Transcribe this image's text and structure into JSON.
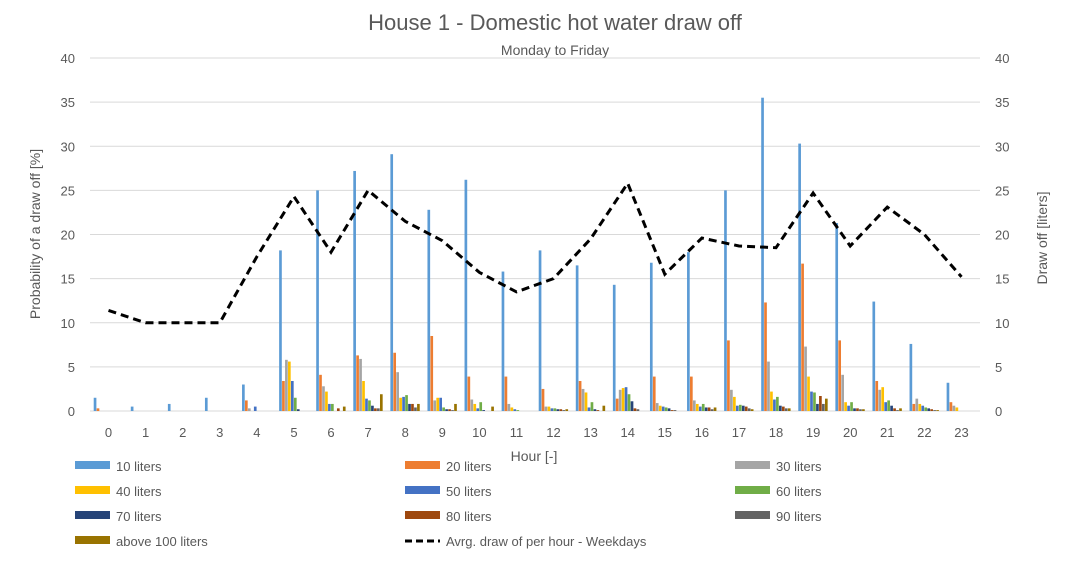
{
  "chart_data": {
    "type": "bar",
    "title": "House 1 - Domestic hot water draw off",
    "subtitle": "Monday to Friday",
    "xlabel": "Hour [-]",
    "ylabel": "Probability of a draw off [%]",
    "y2label": "Draw off [liters]",
    "categories": [
      "0",
      "1",
      "2",
      "3",
      "4",
      "5",
      "6",
      "7",
      "8",
      "9",
      "10",
      "11",
      "12",
      "13",
      "14",
      "15",
      "16",
      "17",
      "18",
      "19",
      "20",
      "21",
      "22",
      "23"
    ],
    "ylim": [
      0,
      40
    ],
    "y2lim": [
      0,
      40
    ],
    "yticks": [
      "0",
      "5",
      "10",
      "15",
      "20",
      "25",
      "30",
      "35",
      "40"
    ],
    "grid": true,
    "legend_position": "bottom",
    "series": [
      {
        "name": "10 liters",
        "color": "#5b9bd5",
        "values": [
          1.5,
          0.5,
          0.8,
          1.5,
          3,
          18.2,
          25,
          27.2,
          29.1,
          22.8,
          26.2,
          15.8,
          18.2,
          16.5,
          14.3,
          16.8,
          18,
          25,
          35.5,
          30.3,
          21.3,
          12.4,
          7.6,
          3.2
        ]
      },
      {
        "name": "20 liters",
        "color": "#ed7d31",
        "values": [
          0.3,
          0,
          0,
          0,
          1.2,
          3.4,
          4.1,
          6.3,
          6.6,
          8.5,
          3.9,
          3.9,
          2.5,
          3.4,
          1.4,
          3.9,
          3.9,
          8,
          12.3,
          16.7,
          8,
          3.4,
          0.8,
          1
        ]
      },
      {
        "name": "30 liters",
        "color": "#a5a5a5",
        "values": [
          0,
          0,
          0,
          0,
          0.3,
          5.8,
          2.8,
          5.9,
          4.4,
          1.2,
          1.3,
          0.8,
          0.5,
          2.5,
          2.4,
          0.9,
          1.2,
          2.4,
          5.6,
          7.3,
          4.1,
          2.4,
          1.4,
          0.6
        ]
      },
      {
        "name": "40 liters",
        "color": "#ffc000",
        "values": [
          0,
          0,
          0,
          0,
          0,
          5.6,
          2.2,
          3.4,
          1.5,
          1.5,
          0.8,
          0.4,
          0.5,
          2.1,
          2.6,
          0.6,
          0.8,
          1.6,
          2.2,
          3.9,
          1,
          2.7,
          0.8,
          0.4
        ]
      },
      {
        "name": "50 liters",
        "color": "#4472c4",
        "values": [
          0,
          0,
          0,
          0,
          0.5,
          3.4,
          0.8,
          1.4,
          1.6,
          1.5,
          0.3,
          0.2,
          0.3,
          0.4,
          2.7,
          0.5,
          0.5,
          0.6,
          1.3,
          2.2,
          0.6,
          1,
          0.6,
          0
        ]
      },
      {
        "name": "60 liters",
        "color": "#70ad47",
        "values": [
          0,
          0,
          0,
          0,
          0,
          1.5,
          0.8,
          1.2,
          1.8,
          0.4,
          1,
          0.1,
          0.3,
          1,
          1.9,
          0.4,
          0.8,
          0.7,
          1.6,
          2.1,
          1,
          1.2,
          0.4,
          0
        ]
      },
      {
        "name": "70 liters",
        "color": "#264478",
        "values": [
          0,
          0,
          0,
          0,
          0,
          0.2,
          0,
          0.6,
          0.8,
          0.2,
          0.1,
          0,
          0.2,
          0.2,
          1.1,
          0.3,
          0.4,
          0.6,
          0.6,
          0.8,
          0.3,
          0.6,
          0.3,
          0
        ]
      },
      {
        "name": "80 liters",
        "color": "#9e480e",
        "values": [
          0,
          0,
          0,
          0,
          0,
          0,
          0.3,
          0.3,
          0.8,
          0.2,
          0,
          0,
          0.2,
          0.1,
          0.3,
          0.1,
          0.4,
          0.5,
          0.5,
          1.7,
          0.3,
          0.3,
          0.2,
          0
        ]
      },
      {
        "name": "90 liters",
        "color": "#636363",
        "values": [
          0,
          0,
          0,
          0,
          0,
          0,
          0,
          0.3,
          0.4,
          0.1,
          0,
          0,
          0.1,
          0,
          0.2,
          0.1,
          0.2,
          0.3,
          0.3,
          0.8,
          0.2,
          0.1,
          0.1,
          0
        ]
      },
      {
        "name": "above 100 liters",
        "color": "#997300",
        "values": [
          0,
          0,
          0,
          0,
          0,
          0,
          0.5,
          1.9,
          0.8,
          0.8,
          0.5,
          0,
          0.2,
          0.6,
          0,
          0,
          0.4,
          0.2,
          0.3,
          1.4,
          0.2,
          0.3,
          0.1,
          0
        ]
      }
    ],
    "line_series": {
      "name": "Avrg. draw of per hour - Weekdays",
      "color": "#000000",
      "axis": "right",
      "values": [
        11.4,
        10,
        10,
        10,
        17.5,
        24.3,
        18,
        25,
        21.5,
        19.3,
        15.7,
        13.5,
        15,
        19.5,
        25.8,
        15.5,
        19.6,
        18.7,
        18.5,
        24.7,
        18.7,
        23.1,
        20,
        15.2
      ]
    }
  }
}
